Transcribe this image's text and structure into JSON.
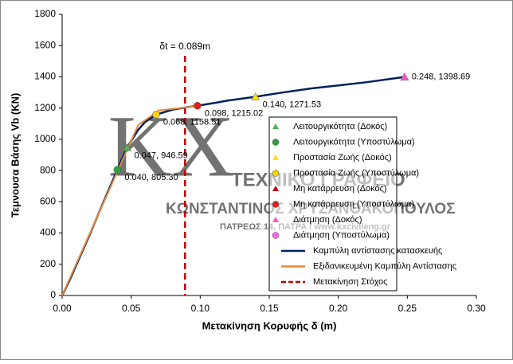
{
  "chart_data": {
    "type": "line",
    "xlabel": "Μετακίνηση Κορυφής δ (m)",
    "ylabel": "Τεμνουσα Βάσης Vb (KN)",
    "xlim": [
      0,
      0.3
    ],
    "ylim": [
      0,
      1800
    ],
    "xticks": [
      {
        "value": 0,
        "label": "0.00"
      },
      0.05,
      {
        "value": 0.1,
        "label": "0.10"
      },
      0.15,
      {
        "value": 0.2,
        "label": "0.20"
      },
      0.25,
      {
        "value": 0.3,
        "label": "0.30"
      }
    ],
    "yticks": [
      0,
      200,
      400,
      600,
      800,
      1000,
      1200,
      1400,
      1600,
      1800
    ],
    "grid": false,
    "legend": "right",
    "series": [
      {
        "name": "Λειτουργικότητα (Δοκός)",
        "kind": "point",
        "marker": "triangle",
        "color": "#4cb64c",
        "x": [
          0.047
        ],
        "values": [
          946.59
        ],
        "value_labels": [
          "0.047, 946.59"
        ]
      },
      {
        "name": "Λειτουργικότητα (Υποστύλωμα)",
        "kind": "point",
        "marker": "circle",
        "color": "#2ea043",
        "x": [
          0.04
        ],
        "values": [
          805.3
        ],
        "value_labels": [
          "0.040, 805.30"
        ]
      },
      {
        "name": "Προστασία Ζωής (Δοκός)",
        "kind": "point",
        "marker": "triangle",
        "color": "#ffe600",
        "x": [
          0.14
        ],
        "values": [
          1271.53
        ],
        "value_labels": [
          "0.140, 1271.53"
        ]
      },
      {
        "name": "Προστασία Ζωής (Υποστύλωμα)",
        "kind": "point",
        "marker": "circle",
        "color": "#ffd000",
        "x": [
          0.068
        ],
        "values": [
          1158.51
        ],
        "value_labels": [
          "0.068, 1158.51"
        ]
      },
      {
        "name": "Μη κατάρρευση (Δοκός)",
        "kind": "point",
        "marker": "triangle",
        "color": "#c00000",
        "x": [],
        "values": [],
        "value_labels": []
      },
      {
        "name": "Μη κατάρρευση (Υποστύλωμα)",
        "kind": "point",
        "marker": "circle",
        "color": "#e0201b",
        "x": [
          0.098
        ],
        "values": [
          1215.02
        ],
        "value_labels": [
          "0.098, 1215.02"
        ]
      },
      {
        "name": "Διάτμηση (Δοκός)",
        "kind": "point",
        "marker": "triangle",
        "color": "#ff55cc",
        "x": [
          0.248
        ],
        "values": [
          1398.69
        ],
        "value_labels": [
          "0.248, 1398.69"
        ]
      },
      {
        "name": "Διάτμηση (Υποστύλωμα)",
        "kind": "point",
        "marker": "circle",
        "color": "#ff66ee",
        "x": [],
        "values": [],
        "value_labels": []
      },
      {
        "name": "Καμπύλη αντίστασης κατασκευής",
        "kind": "line",
        "color": "#002060",
        "x": [
          0,
          0.005,
          0.01,
          0.02,
          0.03,
          0.04,
          0.047,
          0.055,
          0.06,
          0.068,
          0.08,
          0.09,
          0.098,
          0.11,
          0.12,
          0.14,
          0.16,
          0.18,
          0.2,
          0.22,
          0.248
        ],
        "values": [
          0,
          90,
          190,
          390,
          600,
          805,
          947,
          1060,
          1110,
          1158,
          1190,
          1205,
          1215,
          1232,
          1248,
          1272,
          1300,
          1325,
          1345,
          1365,
          1399
        ]
      },
      {
        "name": "Εξιδανικευμένη Καμπύλη Αντίστασης",
        "kind": "line",
        "color": "#e38a3f",
        "x": [
          0,
          0.055,
          0.07,
          0.1
        ],
        "values": [
          0,
          1090,
          1185,
          1215
        ]
      }
    ],
    "target": {
      "name": "Μετακίνηση Στόχος",
      "color": "#c00000",
      "x": 0.089,
      "label": "δt = 0.089m"
    },
    "watermark": [
      "ΤΕΧΝΙΚΟ ΓΡΑΦΕΙΟ",
      "ΚΩΝΣΤΑΝΤΙΝΟΣ ΧΡΥΣΑΝΘΑΚΟΠΟΥΛΟΣ",
      "ΠΑΤΡΕΩΣ 14, ΠΑΤΡΑ / www.kxcivileng.gr",
      "KX"
    ]
  }
}
